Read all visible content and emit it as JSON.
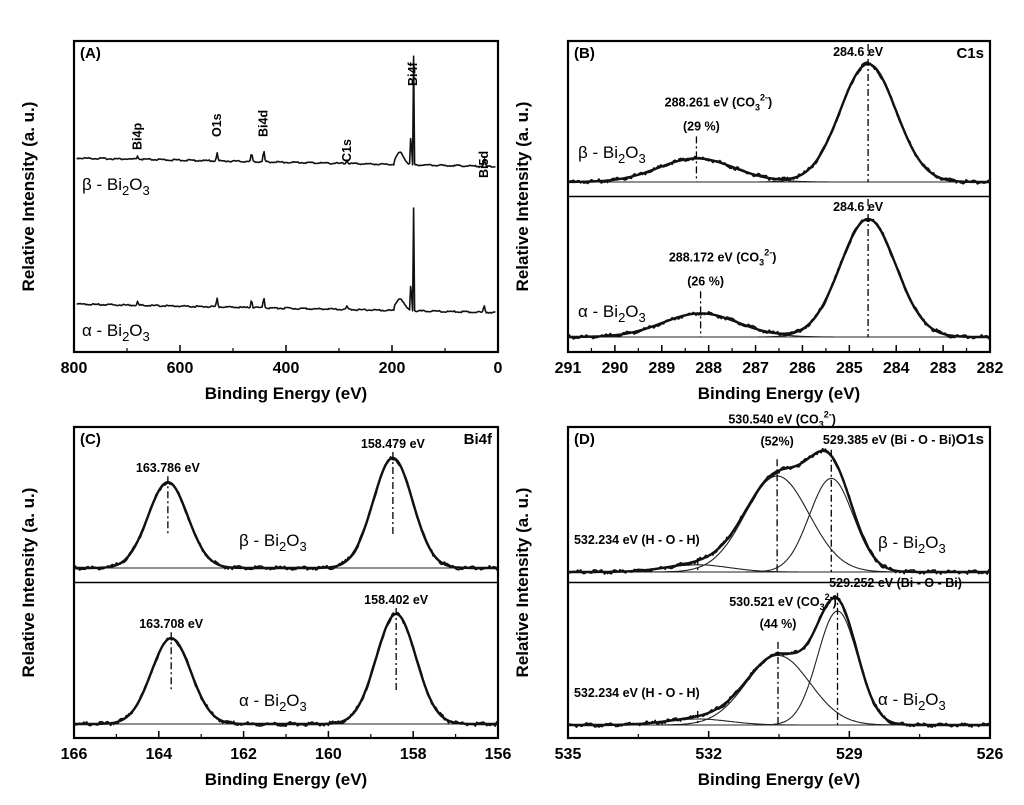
{
  "chart_data": [
    {
      "panel": "(A)",
      "type": "line",
      "title": "",
      "xlabel": "Binding Energy (eV)",
      "ylabel": "Relative Intensity (a. u.)",
      "xlim": [
        800,
        0
      ],
      "x_reversed": true,
      "xticks": [
        "800",
        "600",
        "400",
        "200",
        "0"
      ],
      "peak_labels": [
        {
          "text": "Bi4p",
          "x": 680
        },
        {
          "text": "O1s",
          "x": 530
        },
        {
          "text": "Bi4d",
          "x": 442
        },
        {
          "text": "C1s",
          "x": 285
        },
        {
          "text": "Bi4f",
          "x": 160
        },
        {
          "text": "Bi5d",
          "x": 26
        }
      ],
      "series": [
        {
          "name": "β - Bi2O3",
          "label_main": "β - Bi",
          "label_sub1": "2",
          "label_mid": "O",
          "label_sub2": "3",
          "peaks": [
            {
              "x": 680,
              "h": 0.12
            },
            {
              "x": 530,
              "h": 0.28
            },
            {
              "x": 465,
              "h": 0.28
            },
            {
              "x": 442,
              "h": 0.38
            },
            {
              "x": 285,
              "h": 0.12
            },
            {
              "x": 164,
              "h": 1.0
            },
            {
              "x": 159,
              "h": 1.05
            },
            {
              "x": 26,
              "h": 0.25
            }
          ]
        },
        {
          "name": "α - Bi2O3",
          "label_main": "α - Bi",
          "label_sub1": "2",
          "label_mid": "O",
          "label_sub2": "3",
          "peaks": [
            {
              "x": 680,
              "h": 0.12
            },
            {
              "x": 530,
              "h": 0.28
            },
            {
              "x": 465,
              "h": 0.28
            },
            {
              "x": 442,
              "h": 0.38
            },
            {
              "x": 285,
              "h": 0.1
            },
            {
              "x": 164,
              "h": 0.95
            },
            {
              "x": 159,
              "h": 1.0
            },
            {
              "x": 26,
              "h": 0.25
            }
          ]
        }
      ]
    },
    {
      "panel": "(B)",
      "element": "C1s",
      "type": "line",
      "title": "",
      "xlabel": "Binding Energy (eV)",
      "ylabel": "Relative Intensity (a. u.)",
      "xlim": [
        291,
        282
      ],
      "x_reversed": true,
      "xticks": [
        "291",
        "290",
        "289",
        "288",
        "287",
        "286",
        "285",
        "284",
        "283",
        "282"
      ],
      "series": [
        {
          "name": "β - Bi2O3",
          "label_main": "β - Bi",
          "label_sub1": "2",
          "label_mid": "O",
          "label_sub2": "3",
          "peaks": [
            {
              "center": 284.6,
              "label": "284.6 eV",
              "height": 1.0,
              "fwhm": 1.4
            },
            {
              "center": 288.261,
              "label": "288.261 eV (CO",
              "charge": "3",
              "charge_sup": "2-",
              "close": ")",
              "percent": "(29 %)",
              "height": 0.2,
              "fwhm": 1.9
            }
          ]
        },
        {
          "name": "α - Bi2O3",
          "label_main": "α - Bi",
          "label_sub1": "2",
          "label_mid": "O",
          "label_sub2": "3",
          "peaks": [
            {
              "center": 284.6,
              "label": "284.6 eV",
              "height": 1.0,
              "fwhm": 1.4
            },
            {
              "center": 288.172,
              "label": "288.172 eV (CO",
              "charge": "3",
              "charge_sup": "2-",
              "close": ")",
              "percent": "(26 %)",
              "height": 0.2,
              "fwhm": 1.9
            }
          ]
        }
      ]
    },
    {
      "panel": "(C)",
      "element": "Bi4f",
      "type": "line",
      "title": "",
      "xlabel": "Binding Energy (eV)",
      "ylabel": "Relative Intensity (a. u.)",
      "xlim": [
        166,
        156
      ],
      "x_reversed": true,
      "xticks": [
        "166",
        "164",
        "162",
        "160",
        "158",
        "156"
      ],
      "series": [
        {
          "name": "β - Bi2O3",
          "label_main": "β - Bi",
          "label_sub1": "2",
          "label_mid": "O",
          "label_sub2": "3",
          "peaks": [
            {
              "center": 163.786,
              "label": "163.786 eV",
              "height": 0.78,
              "fwhm": 1.1
            },
            {
              "center": 158.479,
              "label": "158.479 eV",
              "height": 1.0,
              "fwhm": 1.1
            }
          ]
        },
        {
          "name": "α - Bi2O3",
          "label_main": "α - Bi",
          "label_sub1": "2",
          "label_mid": "O",
          "label_sub2": "3",
          "peaks": [
            {
              "center": 163.708,
              "label": "163.708 eV",
              "height": 0.78,
              "fwhm": 1.1
            },
            {
              "center": 158.402,
              "label": "158.402 eV",
              "height": 1.0,
              "fwhm": 1.1
            }
          ]
        }
      ]
    },
    {
      "panel": "(D)",
      "element": "O1s",
      "type": "line",
      "title": "",
      "xlabel": "Binding Energy (eV)",
      "ylabel": "Relative Intensity (a. u.)",
      "xlim": [
        535,
        526
      ],
      "x_reversed": true,
      "xticks": [
        "535",
        "532",
        "529",
        "526"
      ],
      "series": [
        {
          "name": "β - Bi2O3",
          "label_main": "β - Bi",
          "label_sub1": "2",
          "label_mid": "O",
          "label_sub2": "3",
          "peaks": [
            {
              "center": 532.234,
              "label": "532.234 eV (H - O - H)",
              "height": 0.06,
              "fwhm": 1.6
            },
            {
              "center": 530.54,
              "label": "530.540 eV (CO",
              "charge": "3",
              "charge_sup": "2-",
              "close": ")",
              "percent": "(52%)",
              "height": 0.8,
              "fwhm": 1.6
            },
            {
              "center": 529.385,
              "label": "529.385 eV (Bi - O - Bi)",
              "height": 0.78,
              "fwhm": 1.1
            }
          ]
        },
        {
          "name": "α - Bi2O3",
          "label_main": "α - Bi",
          "label_sub1": "2",
          "label_mid": "O",
          "label_sub2": "3",
          "peaks": [
            {
              "center": 532.234,
              "label": "532.234 eV (H - O - H)",
              "height": 0.05,
              "fwhm": 1.6
            },
            {
              "center": 530.521,
              "label": "530.521 eV (CO",
              "charge": "3",
              "charge_sup": "2-",
              "close": ")",
              "percent": "(44 %)",
              "height": 0.58,
              "fwhm": 1.6
            },
            {
              "center": 529.252,
              "label": "529.252 eV (Bi - O - Bi)",
              "height": 0.95,
              "fwhm": 1.0
            }
          ]
        }
      ]
    }
  ]
}
